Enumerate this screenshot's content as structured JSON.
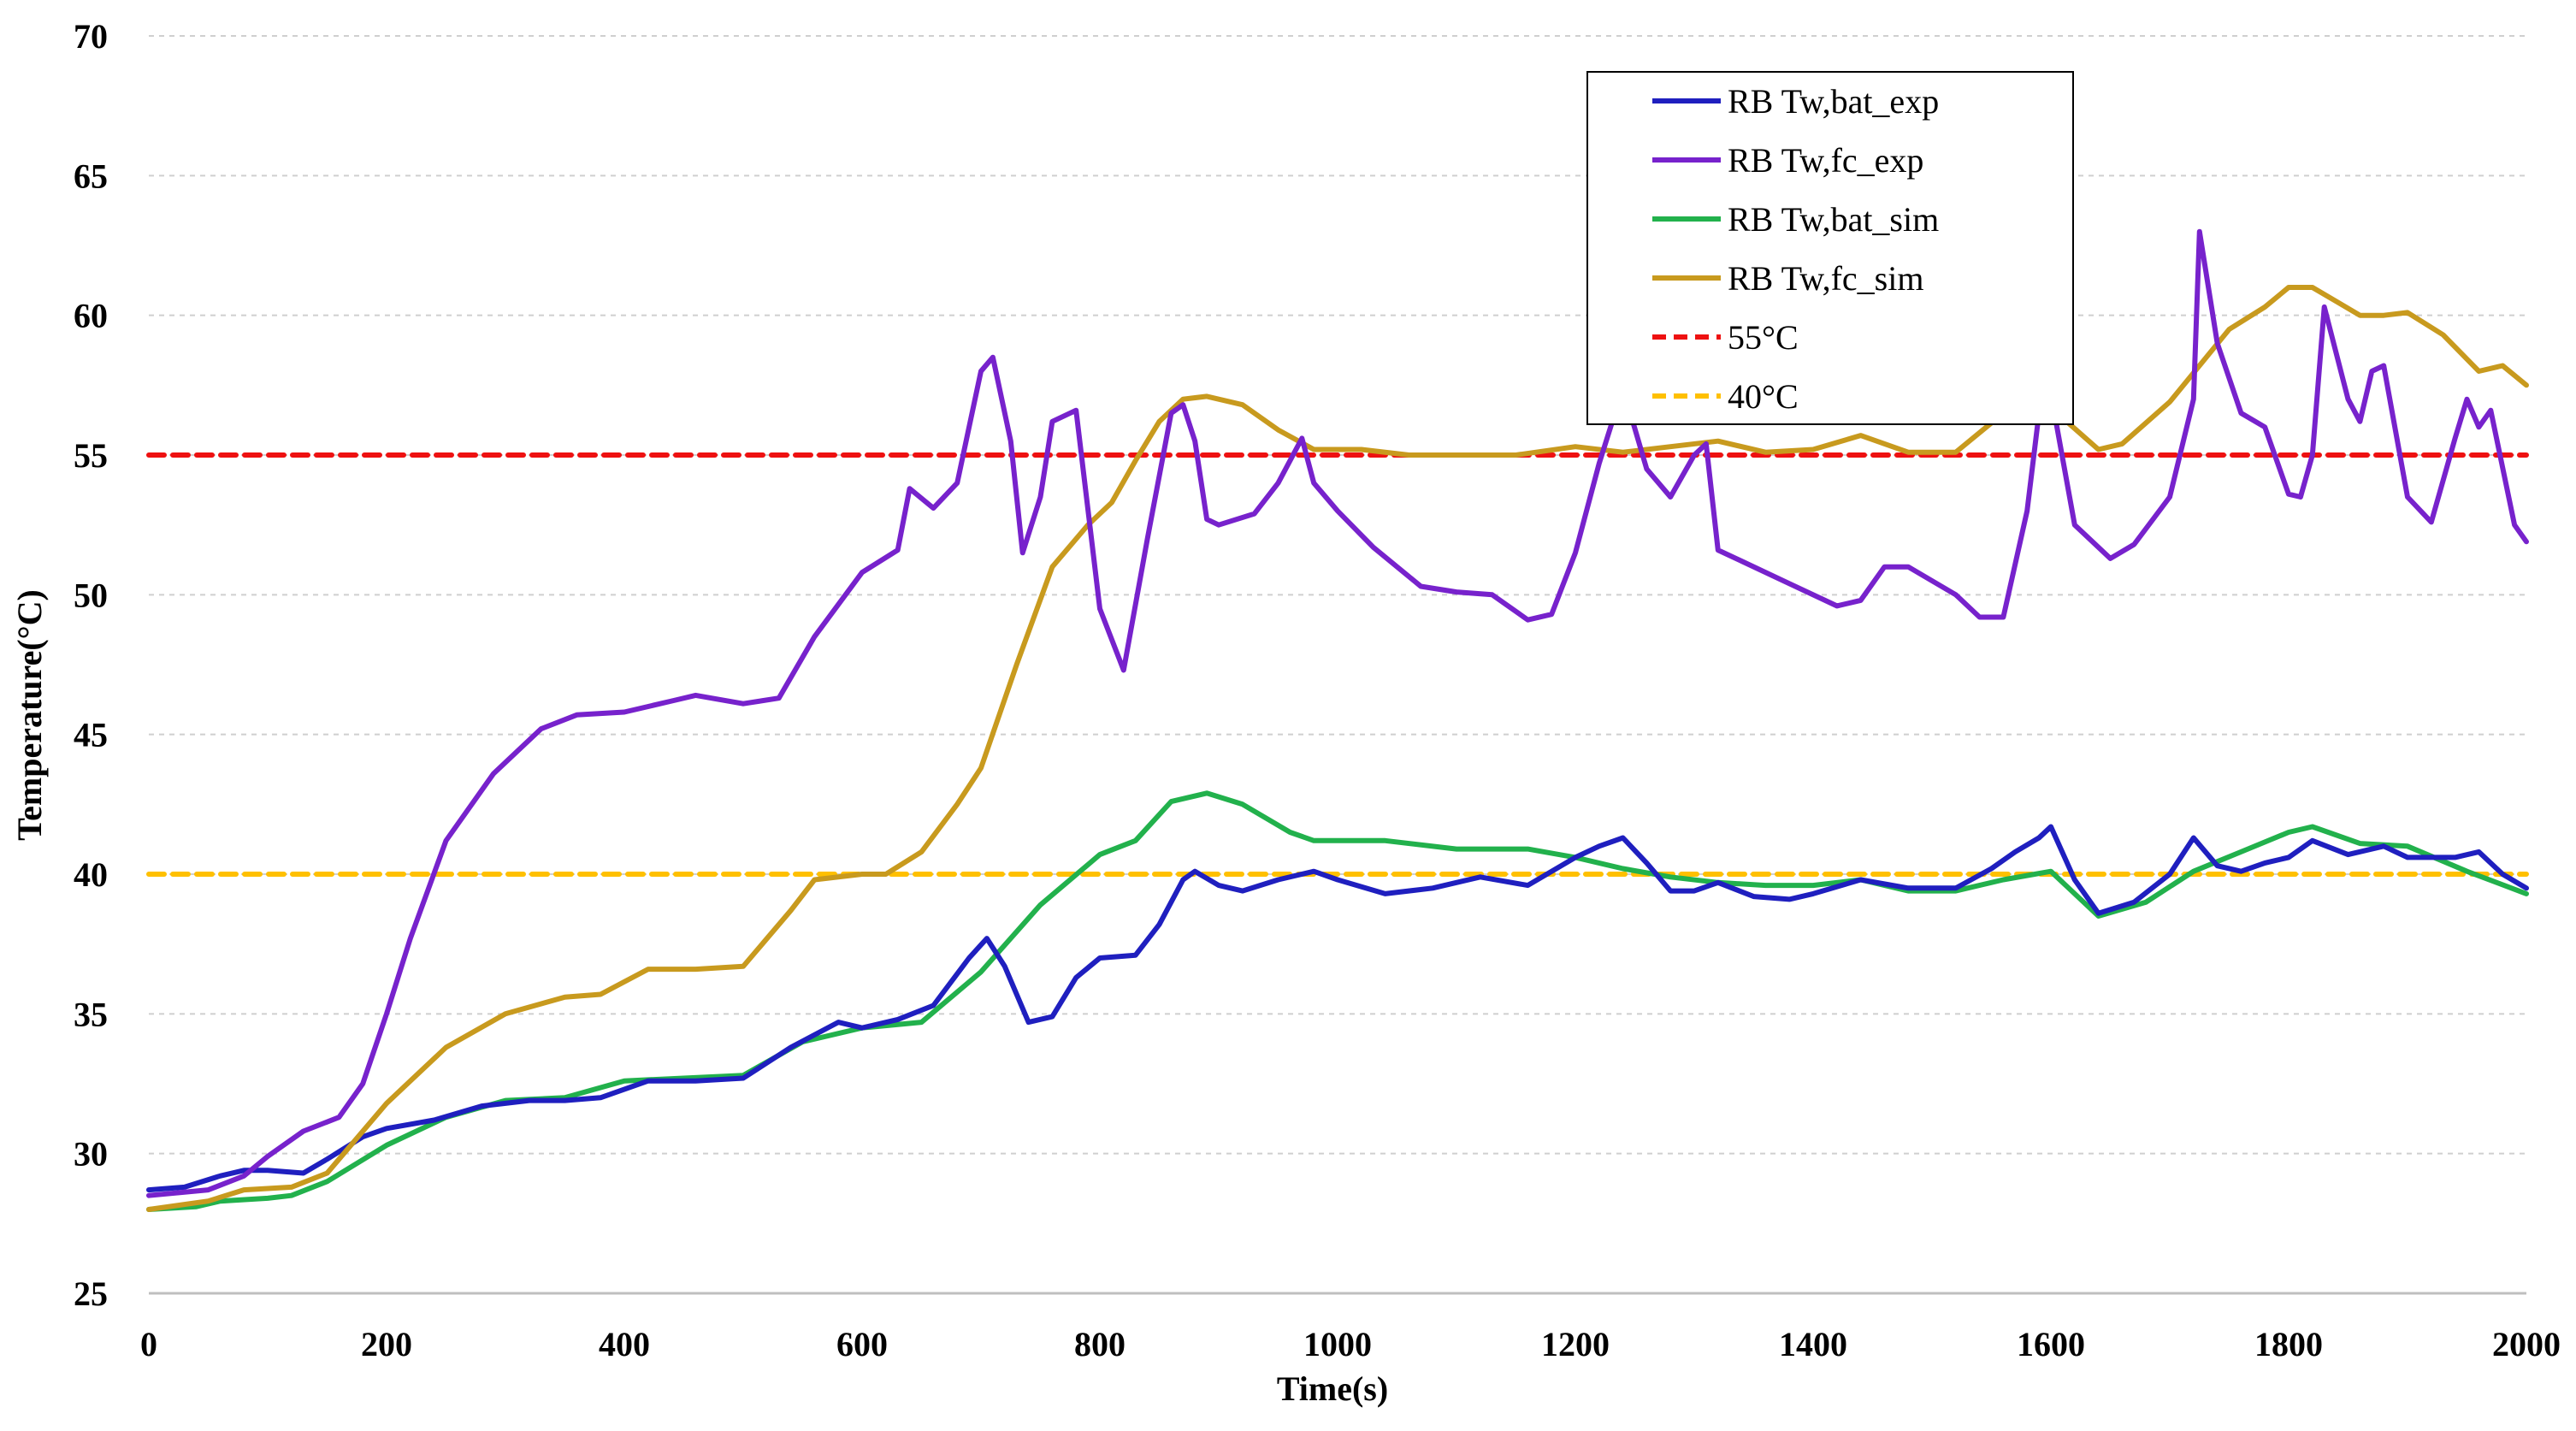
{
  "chart_data": {
    "type": "line",
    "title": "",
    "xlabel": "Time(s)",
    "ylabel": "Temperature(°C)",
    "xlim": [
      0,
      2000
    ],
    "ylim": [
      25,
      70
    ],
    "xticks": [
      0,
      200,
      400,
      600,
      800,
      1000,
      1200,
      1400,
      1600,
      1800,
      2000
    ],
    "yticks": [
      25,
      30,
      35,
      40,
      45,
      50,
      55,
      60,
      65,
      70
    ],
    "grid": "horizontal dashed",
    "legend_position": "top-center-right",
    "series": [
      {
        "name": "RB Tw,bat_exp",
        "color": "#1f1fbf",
        "style": "solid",
        "x": [
          0,
          30,
          60,
          80,
          100,
          130,
          150,
          180,
          200,
          240,
          280,
          320,
          350,
          380,
          420,
          460,
          500,
          540,
          580,
          600,
          630,
          660,
          690,
          705,
          720,
          740,
          760,
          780,
          800,
          830,
          850,
          870,
          880,
          900,
          920,
          950,
          980,
          1000,
          1040,
          1080,
          1120,
          1160,
          1200,
          1220,
          1240,
          1260,
          1280,
          1300,
          1320,
          1350,
          1380,
          1400,
          1440,
          1480,
          1520,
          1550,
          1570,
          1590,
          1600,
          1620,
          1640,
          1670,
          1700,
          1720,
          1740,
          1760,
          1780,
          1800,
          1820,
          1850,
          1880,
          1900,
          1940,
          1960,
          1980,
          2000
        ],
        "y": [
          28.7,
          28.8,
          29.2,
          29.4,
          29.4,
          29.3,
          29.8,
          30.6,
          30.9,
          31.2,
          31.7,
          31.9,
          31.9,
          32.0,
          32.6,
          32.6,
          32.7,
          33.8,
          34.7,
          34.5,
          34.8,
          35.3,
          37.0,
          37.7,
          36.7,
          34.7,
          34.9,
          36.3,
          37.0,
          37.1,
          38.2,
          39.8,
          40.1,
          39.6,
          39.4,
          39.8,
          40.1,
          39.8,
          39.3,
          39.5,
          39.9,
          39.6,
          40.6,
          41.0,
          41.3,
          40.4,
          39.4,
          39.4,
          39.7,
          39.2,
          39.1,
          39.3,
          39.8,
          39.5,
          39.5,
          40.2,
          40.8,
          41.3,
          41.7,
          39.8,
          38.6,
          39.0,
          40.0,
          41.3,
          40.3,
          40.1,
          40.4,
          40.6,
          41.2,
          40.7,
          41.0,
          40.6,
          40.6,
          40.8,
          40.0,
          39.5
        ]
      },
      {
        "name": "RB Tw,fc_exp",
        "color": "#7722cc",
        "style": "solid",
        "x": [
          0,
          50,
          80,
          100,
          130,
          160,
          180,
          200,
          220,
          250,
          290,
          330,
          360,
          400,
          440,
          460,
          500,
          530,
          560,
          600,
          630,
          640,
          660,
          680,
          700,
          710,
          725,
          735,
          750,
          760,
          780,
          800,
          820,
          840,
          860,
          870,
          880,
          890,
          900,
          930,
          950,
          970,
          980,
          1000,
          1030,
          1070,
          1100,
          1130,
          1160,
          1180,
          1200,
          1220,
          1240,
          1260,
          1280,
          1300,
          1310,
          1320,
          1340,
          1380,
          1420,
          1440,
          1460,
          1480,
          1520,
          1540,
          1560,
          1580,
          1590,
          1600,
          1620,
          1650,
          1670,
          1700,
          1720,
          1725,
          1740,
          1760,
          1780,
          1800,
          1810,
          1820,
          1830,
          1850,
          1860,
          1870,
          1880,
          1900,
          1920,
          1940,
          1950,
          1960,
          1970,
          1990,
          2000
        ],
        "y": [
          28.5,
          28.7,
          29.2,
          29.9,
          30.8,
          31.3,
          32.5,
          35.0,
          37.7,
          41.2,
          43.6,
          45.2,
          45.7,
          45.8,
          46.2,
          46.4,
          46.1,
          46.3,
          48.5,
          50.8,
          51.6,
          53.8,
          53.1,
          54.0,
          58.0,
          58.5,
          55.5,
          51.5,
          53.5,
          56.2,
          56.6,
          49.5,
          47.3,
          52.0,
          56.5,
          56.8,
          55.5,
          52.7,
          52.5,
          52.9,
          54.0,
          55.6,
          54.0,
          53.0,
          51.7,
          50.3,
          50.1,
          50.0,
          49.1,
          49.3,
          51.5,
          54.7,
          57.4,
          54.5,
          53.5,
          55.0,
          55.4,
          51.6,
          51.2,
          50.4,
          49.6,
          49.8,
          51.0,
          51.0,
          50.0,
          49.2,
          49.2,
          53.0,
          56.5,
          57.2,
          52.5,
          51.3,
          51.8,
          53.5,
          57.0,
          63.0,
          59.0,
          56.5,
          56.0,
          53.6,
          53.5,
          55.0,
          60.3,
          57.0,
          56.2,
          58.0,
          58.2,
          53.5,
          52.6,
          55.6,
          57.0,
          56.0,
          56.6,
          52.5,
          51.9
        ]
      },
      {
        "name": "RB Tw,bat_sim",
        "color": "#22b14c",
        "style": "solid",
        "x": [
          0,
          40,
          60,
          100,
          120,
          150,
          200,
          250,
          300,
          350,
          400,
          450,
          500,
          550,
          600,
          650,
          700,
          750,
          800,
          830,
          860,
          890,
          920,
          960,
          980,
          1040,
          1100,
          1160,
          1200,
          1240,
          1280,
          1320,
          1360,
          1400,
          1440,
          1480,
          1520,
          1560,
          1600,
          1640,
          1680,
          1720,
          1760,
          1800,
          1820,
          1860,
          1900,
          1950,
          2000
        ],
        "y": [
          28.0,
          28.1,
          28.3,
          28.4,
          28.5,
          29.0,
          30.3,
          31.3,
          31.9,
          32.0,
          32.6,
          32.7,
          32.8,
          34.0,
          34.5,
          34.7,
          36.5,
          38.9,
          40.7,
          41.2,
          42.6,
          42.9,
          42.5,
          41.5,
          41.2,
          41.2,
          40.9,
          40.9,
          40.6,
          40.2,
          39.9,
          39.7,
          39.6,
          39.6,
          39.8,
          39.4,
          39.4,
          39.8,
          40.1,
          38.5,
          39.0,
          40.1,
          40.8,
          41.5,
          41.7,
          41.1,
          41.0,
          40.1,
          39.3
        ]
      },
      {
        "name": "RB Tw,fc_sim",
        "color": "#c89a1e",
        "style": "solid",
        "x": [
          0,
          50,
          80,
          120,
          150,
          200,
          250,
          300,
          350,
          380,
          420,
          460,
          500,
          540,
          560,
          600,
          620,
          650,
          680,
          700,
          730,
          760,
          790,
          810,
          830,
          850,
          870,
          890,
          920,
          950,
          980,
          1020,
          1060,
          1100,
          1150,
          1200,
          1240,
          1280,
          1320,
          1360,
          1400,
          1440,
          1480,
          1520,
          1560,
          1580,
          1600,
          1640,
          1660,
          1700,
          1750,
          1780,
          1800,
          1820,
          1840,
          1860,
          1880,
          1900,
          1930,
          1960,
          1980,
          2000
        ],
        "y": [
          28.0,
          28.3,
          28.7,
          28.8,
          29.3,
          31.8,
          33.8,
          35.0,
          35.6,
          35.7,
          36.6,
          36.6,
          36.7,
          38.7,
          39.8,
          40.0,
          40.0,
          40.8,
          42.5,
          43.8,
          47.5,
          51.0,
          52.5,
          53.3,
          54.8,
          56.2,
          57.0,
          57.1,
          56.8,
          55.9,
          55.2,
          55.2,
          55.0,
          55.0,
          55.0,
          55.3,
          55.1,
          55.3,
          55.5,
          55.1,
          55.2,
          55.7,
          55.1,
          55.1,
          56.5,
          57.1,
          56.7,
          55.2,
          55.4,
          56.9,
          59.5,
          60.3,
          61.0,
          61.0,
          60.5,
          60.0,
          60.0,
          60.1,
          59.3,
          58.0,
          58.2,
          57.5
        ]
      },
      {
        "name": "55°C",
        "color": "#ee1111",
        "style": "dashed",
        "x": [
          0,
          2000
        ],
        "y": [
          55,
          55
        ]
      },
      {
        "name": "40°C",
        "color": "#ffc000",
        "style": "dashed",
        "x": [
          0,
          2000
        ],
        "y": [
          40,
          40
        ]
      }
    ]
  }
}
